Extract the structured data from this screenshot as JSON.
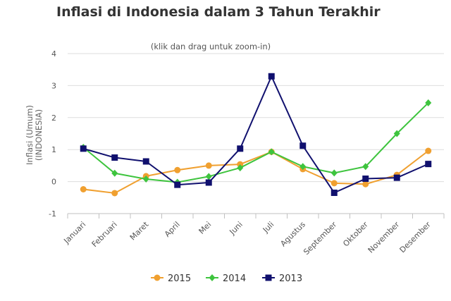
{
  "chart_data": {
    "type": "line",
    "title": "Inflasi di Indonesia dalam 3 Tahun Terakhir",
    "subtitle": "(klik dan drag untuk zoom-in)",
    "ylabel": "Inflasi (Umum)\n(INDONESIA)",
    "xlabel": "",
    "ylim": [
      -1,
      4
    ],
    "yticks": [
      -1,
      0,
      1,
      2,
      3,
      4
    ],
    "grid": true,
    "legend_position": "bottom-center",
    "categories": [
      "Januari",
      "Februari",
      "Maret",
      "April",
      "Mei",
      "Juni",
      "Juli",
      "Agustus",
      "September",
      "Oktober",
      "November",
      "Desember"
    ],
    "series": [
      {
        "name": "2015",
        "color": "#f0a030",
        "marker": "circle",
        "values": [
          -0.24,
          -0.36,
          0.17,
          0.36,
          0.5,
          0.54,
          0.93,
          0.39,
          -0.05,
          -0.08,
          0.21,
          0.96
        ]
      },
      {
        "name": "2014",
        "color": "#3ec43e",
        "marker": "diamond",
        "values": [
          1.07,
          0.26,
          0.08,
          -0.02,
          0.16,
          0.43,
          0.93,
          0.47,
          0.27,
          0.47,
          1.5,
          2.46
        ]
      },
      {
        "name": "2013",
        "color": "#10106e",
        "marker": "square",
        "values": [
          1.03,
          0.75,
          0.63,
          -0.1,
          -0.03,
          1.03,
          3.29,
          1.12,
          -0.35,
          0.09,
          0.12,
          0.55
        ]
      }
    ]
  }
}
